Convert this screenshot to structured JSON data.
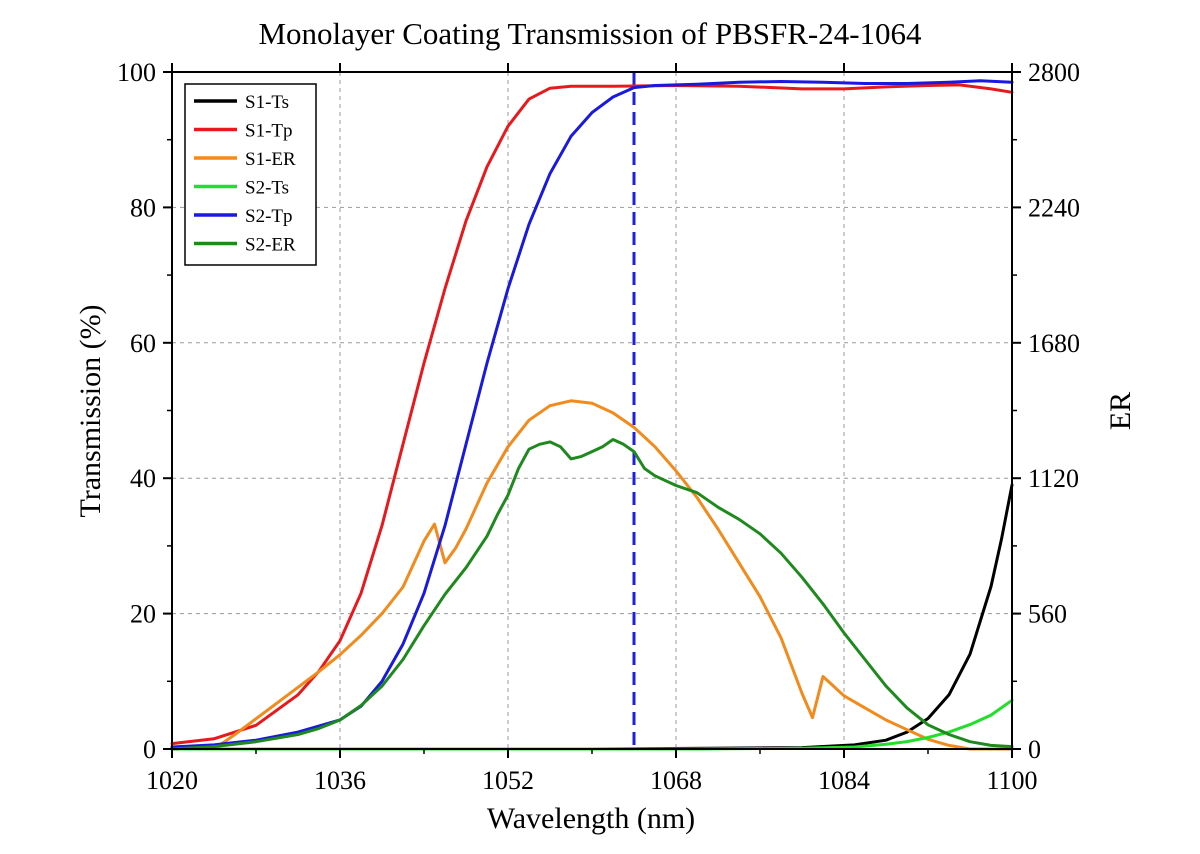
{
  "chart_data": {
    "type": "line",
    "title": "Monolayer Coating Transmission of PBSFR-24-1064",
    "xlabel": "Wavelength (nm)",
    "ylabel": "Transmission (%)",
    "y2label": "ER",
    "xlim": [
      1020,
      1100
    ],
    "ylim": [
      0,
      100
    ],
    "y2lim": [
      0,
      2800
    ],
    "x_ticks": [
      "1020",
      "1036",
      "1052",
      "1068",
      "1084",
      "1100"
    ],
    "y_ticks": [
      "0",
      "20",
      "40",
      "60",
      "80",
      "100"
    ],
    "y2_ticks": [
      "0",
      "560",
      "1120",
      "1680",
      "2240",
      "2800"
    ],
    "grid": true,
    "legend_position": "top-left",
    "marker_line": {
      "x": 1064,
      "style": "dashed",
      "color": "#1f1fe0"
    },
    "series": [
      {
        "name": "S1-Ts",
        "axis": "left",
        "color": "#000000",
        "points": [
          [
            1020,
            0
          ],
          [
            1060,
            0
          ],
          [
            1080,
            0.2
          ],
          [
            1085,
            0.6
          ],
          [
            1088,
            1.3
          ],
          [
            1090,
            2.5
          ],
          [
            1092,
            4.5
          ],
          [
            1094,
            8
          ],
          [
            1096,
            14
          ],
          [
            1098,
            24
          ],
          [
            1099,
            31
          ],
          [
            1100,
            39
          ]
        ]
      },
      {
        "name": "S1-Tp",
        "axis": "left",
        "color": "#e8191c",
        "points": [
          [
            1020,
            0.8
          ],
          [
            1024,
            1.5
          ],
          [
            1028,
            3.5
          ],
          [
            1032,
            8
          ],
          [
            1034,
            11.5
          ],
          [
            1036,
            16
          ],
          [
            1038,
            23
          ],
          [
            1040,
            33
          ],
          [
            1042,
            45
          ],
          [
            1044,
            57
          ],
          [
            1046,
            68
          ],
          [
            1048,
            78
          ],
          [
            1050,
            86
          ],
          [
            1052,
            92
          ],
          [
            1054,
            96
          ],
          [
            1056,
            97.6
          ],
          [
            1058,
            97.9
          ],
          [
            1062,
            97.9
          ],
          [
            1068,
            98
          ],
          [
            1074,
            97.9
          ],
          [
            1080,
            97.5
          ],
          [
            1084,
            97.5
          ],
          [
            1088,
            97.8
          ],
          [
            1092,
            98
          ],
          [
            1095,
            98.1
          ],
          [
            1098,
            97.5
          ],
          [
            1100,
            97
          ]
        ]
      },
      {
        "name": "S1-ER",
        "axis": "right",
        "color": "#f28a1c",
        "points": [
          [
            1020,
            0
          ],
          [
            1024,
            0
          ],
          [
            1026,
            60
          ],
          [
            1030,
            190
          ],
          [
            1034,
            320
          ],
          [
            1036,
            390
          ],
          [
            1038,
            470
          ],
          [
            1040,
            560
          ],
          [
            1042,
            670
          ],
          [
            1044,
            860
          ],
          [
            1045,
            930
          ],
          [
            1046,
            770
          ],
          [
            1047,
            830
          ],
          [
            1048,
            910
          ],
          [
            1050,
            1100
          ],
          [
            1052,
            1250
          ],
          [
            1054,
            1360
          ],
          [
            1056,
            1420
          ],
          [
            1058,
            1440
          ],
          [
            1060,
            1430
          ],
          [
            1062,
            1390
          ],
          [
            1064,
            1330
          ],
          [
            1066,
            1250
          ],
          [
            1068,
            1150
          ],
          [
            1070,
            1040
          ],
          [
            1072,
            910
          ],
          [
            1074,
            770
          ],
          [
            1076,
            630
          ],
          [
            1078,
            460
          ],
          [
            1080,
            230
          ],
          [
            1081,
            130
          ],
          [
            1082,
            300
          ],
          [
            1083,
            260
          ],
          [
            1084,
            220
          ],
          [
            1086,
            170
          ],
          [
            1088,
            120
          ],
          [
            1090,
            80
          ],
          [
            1092,
            40
          ],
          [
            1094,
            15
          ],
          [
            1096,
            0
          ],
          [
            1100,
            0
          ]
        ]
      },
      {
        "name": "S2-Ts",
        "axis": "left",
        "color": "#21e02a",
        "points": [
          [
            1020,
            0
          ],
          [
            1070,
            0
          ],
          [
            1080,
            0.1
          ],
          [
            1085,
            0.3
          ],
          [
            1088,
            0.7
          ],
          [
            1090,
            1.1
          ],
          [
            1092,
            1.7
          ],
          [
            1094,
            2.5
          ],
          [
            1096,
            3.6
          ],
          [
            1098,
            5
          ],
          [
            1100,
            7.2
          ]
        ]
      },
      {
        "name": "S2-Tp",
        "axis": "left",
        "color": "#1a1adf",
        "points": [
          [
            1020,
            0.3
          ],
          [
            1024,
            0.6
          ],
          [
            1028,
            1.3
          ],
          [
            1032,
            2.5
          ],
          [
            1036,
            4.3
          ],
          [
            1038,
            6.3
          ],
          [
            1040,
            10
          ],
          [
            1042,
            15.5
          ],
          [
            1044,
            23
          ],
          [
            1046,
            33
          ],
          [
            1048,
            45
          ],
          [
            1050,
            57
          ],
          [
            1052,
            68
          ],
          [
            1054,
            77.5
          ],
          [
            1056,
            85
          ],
          [
            1058,
            90.5
          ],
          [
            1060,
            94
          ],
          [
            1062,
            96.3
          ],
          [
            1064,
            97.7
          ],
          [
            1066,
            98
          ],
          [
            1070,
            98.2
          ],
          [
            1074,
            98.5
          ],
          [
            1078,
            98.6
          ],
          [
            1082,
            98.5
          ],
          [
            1086,
            98.3
          ],
          [
            1090,
            98.3
          ],
          [
            1094,
            98.5
          ],
          [
            1097,
            98.7
          ],
          [
            1100,
            98.5
          ]
        ]
      },
      {
        "name": "S2-ER",
        "axis": "right",
        "color": "#1e8a1e",
        "points": [
          [
            1020,
            0
          ],
          [
            1024,
            10
          ],
          [
            1028,
            30
          ],
          [
            1032,
            60
          ],
          [
            1034,
            85
          ],
          [
            1036,
            120
          ],
          [
            1038,
            180
          ],
          [
            1040,
            260
          ],
          [
            1042,
            370
          ],
          [
            1044,
            510
          ],
          [
            1046,
            640
          ],
          [
            1048,
            750
          ],
          [
            1050,
            880
          ],
          [
            1051,
            970
          ],
          [
            1052,
            1050
          ],
          [
            1053,
            1160
          ],
          [
            1054,
            1240
          ],
          [
            1055,
            1260
          ],
          [
            1056,
            1270
          ],
          [
            1057,
            1250
          ],
          [
            1058,
            1200
          ],
          [
            1059,
            1210
          ],
          [
            1060,
            1230
          ],
          [
            1061,
            1250
          ],
          [
            1062,
            1280
          ],
          [
            1063,
            1260
          ],
          [
            1064,
            1230
          ],
          [
            1065,
            1160
          ],
          [
            1066,
            1130
          ],
          [
            1068,
            1090
          ],
          [
            1070,
            1060
          ],
          [
            1072,
            1000
          ],
          [
            1074,
            950
          ],
          [
            1076,
            890
          ],
          [
            1078,
            810
          ],
          [
            1080,
            710
          ],
          [
            1082,
            600
          ],
          [
            1084,
            480
          ],
          [
            1086,
            370
          ],
          [
            1088,
            260
          ],
          [
            1090,
            170
          ],
          [
            1092,
            100
          ],
          [
            1094,
            60
          ],
          [
            1096,
            30
          ],
          [
            1098,
            15
          ],
          [
            1100,
            10
          ]
        ]
      }
    ]
  }
}
